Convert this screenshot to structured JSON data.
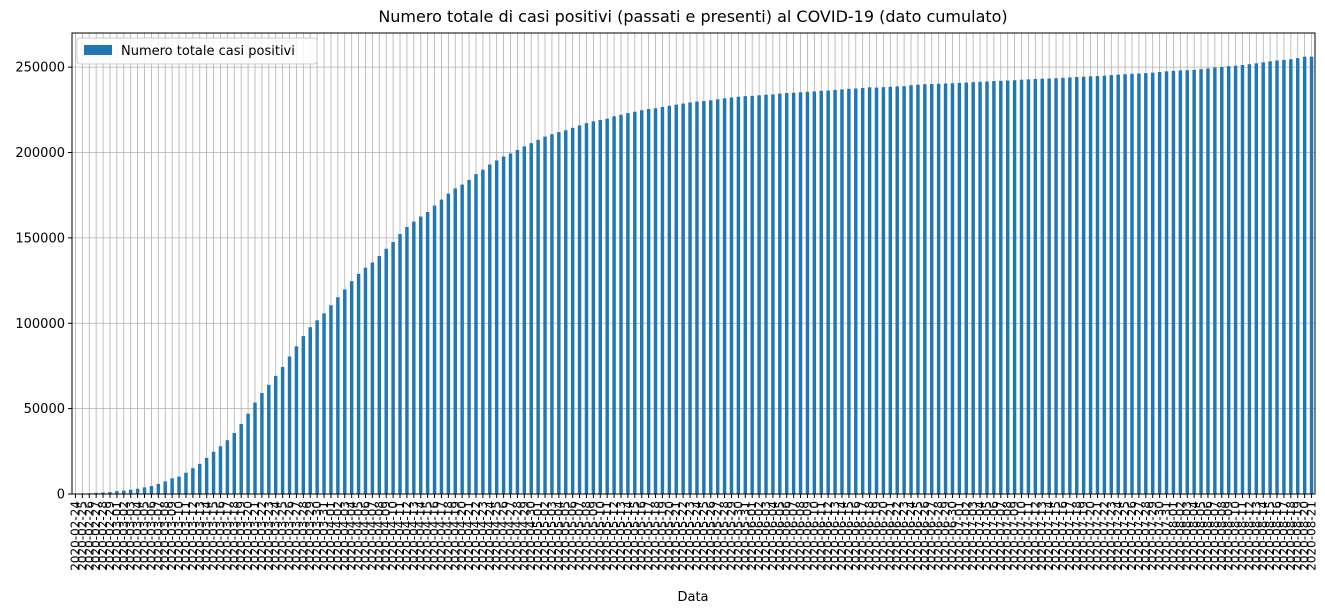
{
  "chart_data": {
    "type": "bar",
    "title": "Numero totale di casi positivi (passati e presenti) al COVID-19 (dato cumulato)",
    "xlabel": "Data",
    "ylabel": "",
    "ylim": [
      0,
      270000
    ],
    "yticks": [
      0,
      50000,
      100000,
      150000,
      200000,
      250000
    ],
    "ytick_labels": [
      "0",
      "50000",
      "100000",
      "150000",
      "200000",
      "250000"
    ],
    "grid": true,
    "legend": "top-left",
    "start_date": "2020-02-24",
    "categories": [
      "2020-02-24",
      "2020-02-25",
      "2020-02-26",
      "2020-02-27",
      "2020-02-28",
      "2020-02-29",
      "2020-03-01",
      "2020-03-02",
      "2020-03-03",
      "2020-03-04",
      "2020-03-05",
      "2020-03-06",
      "2020-03-07",
      "2020-03-08",
      "2020-03-09",
      "2020-03-10",
      "2020-03-11",
      "2020-03-12",
      "2020-03-13",
      "2020-03-14",
      "2020-03-15",
      "2020-03-16",
      "2020-03-17",
      "2020-03-18",
      "2020-03-19",
      "2020-03-20",
      "2020-03-21",
      "2020-03-22",
      "2020-03-23",
      "2020-03-24",
      "2020-03-25",
      "2020-03-26",
      "2020-03-27",
      "2020-03-28",
      "2020-03-29",
      "2020-03-30",
      "2020-03-31",
      "2020-04-01",
      "2020-04-02",
      "2020-04-03",
      "2020-04-04",
      "2020-04-05",
      "2020-04-06",
      "2020-04-07",
      "2020-04-08",
      "2020-04-09",
      "2020-04-10",
      "2020-04-11",
      "2020-04-12",
      "2020-04-13",
      "2020-04-14",
      "2020-04-15",
      "2020-04-16",
      "2020-04-17",
      "2020-04-18",
      "2020-04-19",
      "2020-04-20",
      "2020-04-21",
      "2020-04-22",
      "2020-04-23",
      "2020-04-24",
      "2020-04-25",
      "2020-04-26",
      "2020-04-27",
      "2020-04-28",
      "2020-04-29",
      "2020-04-30",
      "2020-05-01",
      "2020-05-02",
      "2020-05-03",
      "2020-05-04",
      "2020-05-05",
      "2020-05-06",
      "2020-05-07",
      "2020-05-08",
      "2020-05-09",
      "2020-05-10",
      "2020-05-11",
      "2020-05-12",
      "2020-05-13",
      "2020-05-14",
      "2020-05-15",
      "2020-05-16",
      "2020-05-17",
      "2020-05-18",
      "2020-05-19",
      "2020-05-20",
      "2020-05-21",
      "2020-05-22",
      "2020-05-23",
      "2020-05-24",
      "2020-05-25",
      "2020-05-26",
      "2020-05-27",
      "2020-05-28",
      "2020-05-29",
      "2020-05-30",
      "2020-05-31",
      "2020-06-01",
      "2020-06-02",
      "2020-06-03",
      "2020-06-04",
      "2020-06-05",
      "2020-06-06",
      "2020-06-07",
      "2020-06-08",
      "2020-06-09",
      "2020-06-10",
      "2020-06-11",
      "2020-06-12",
      "2020-06-13",
      "2020-06-14",
      "2020-06-15",
      "2020-06-16",
      "2020-06-17",
      "2020-06-18",
      "2020-06-19",
      "2020-06-20",
      "2020-06-21",
      "2020-06-22",
      "2020-06-23",
      "2020-06-24",
      "2020-06-25",
      "2020-06-26",
      "2020-06-27",
      "2020-06-28",
      "2020-06-29",
      "2020-06-30",
      "2020-07-01",
      "2020-07-02",
      "2020-07-03",
      "2020-07-04",
      "2020-07-05",
      "2020-07-06",
      "2020-07-07",
      "2020-07-08",
      "2020-07-09",
      "2020-07-10",
      "2020-07-11",
      "2020-07-12",
      "2020-07-13",
      "2020-07-14",
      "2020-07-15",
      "2020-07-16",
      "2020-07-17",
      "2020-07-18",
      "2020-07-19",
      "2020-07-20",
      "2020-07-21",
      "2020-07-22",
      "2020-07-23",
      "2020-07-24",
      "2020-07-25",
      "2020-07-26",
      "2020-07-27",
      "2020-07-28",
      "2020-07-29",
      "2020-07-30",
      "2020-07-31",
      "2020-08-01",
      "2020-08-02",
      "2020-08-03",
      "2020-08-04",
      "2020-08-05",
      "2020-08-06",
      "2020-08-07",
      "2020-08-08",
      "2020-08-09",
      "2020-08-10",
      "2020-08-11",
      "2020-08-12",
      "2020-08-13",
      "2020-08-14",
      "2020-08-15",
      "2020-08-16",
      "2020-08-17",
      "2020-08-18",
      "2020-08-19",
      "2020-08-20",
      "2020-08-21"
    ],
    "series": [
      {
        "name": "Numero totale casi positivi",
        "color": "#1f77b4",
        "values": [
          229,
          322,
          400,
          650,
          888,
          1128,
          1694,
          2036,
          2502,
          3089,
          3858,
          4636,
          5883,
          7375,
          9172,
          10149,
          12462,
          15113,
          17660,
          21157,
          24747,
          27980,
          31506,
          35713,
          41035,
          47021,
          53578,
          59138,
          63927,
          69176,
          74386,
          80539,
          86498,
          92472,
          97689,
          101739,
          105792,
          110574,
          115242,
          119827,
          124632,
          128948,
          132547,
          135586,
          139422,
          143626,
          147577,
          152271,
          156363,
          159516,
          162488,
          165155,
          168941,
          172434,
          175925,
          178972,
          181228,
          183957,
          187327,
          189973,
          192994,
          195351,
          197675,
          199414,
          201505,
          203591,
          205463,
          207428,
          209328,
          210717,
          211938,
          213013,
          214457,
          215858,
          217185,
          218268,
          219070,
          219814,
          221216,
          222104,
          223096,
          223885,
          224760,
          225435,
          225886,
          226699,
          227364,
          228006,
          228658,
          229327,
          229858,
          230158,
          230555,
          231139,
          231732,
          232248,
          232664,
          232997,
          233197,
          233515,
          233836,
          234013,
          234531,
          234801,
          234998,
          235278,
          235561,
          235763,
          236142,
          236305,
          236651,
          236989,
          237290,
          237500,
          237828,
          238159,
          238011,
          238275,
          238499,
          238720,
          238833,
          239410,
          239706,
          239961,
          240136,
          240310,
          240436,
          240578,
          240760,
          240961,
          241184,
          241419,
          241611,
          241819,
          241956,
          242149,
          242363,
          242639,
          242827,
          243061,
          243230,
          243344,
          243506,
          243736,
          243967,
          244216,
          244434,
          244624,
          244752,
          245032,
          245338,
          245590,
          245864,
          246118,
          246286,
          246488,
          246776,
          247158,
          247537,
          247832,
          248070,
          248229,
          248419,
          248803,
          249204,
          249756,
          250103,
          250566,
          250825,
          251237,
          251713,
          252235,
          252809,
          253438,
          253915,
          254235,
          254636,
          255278,
          256118,
          256118
        ]
      }
    ]
  }
}
